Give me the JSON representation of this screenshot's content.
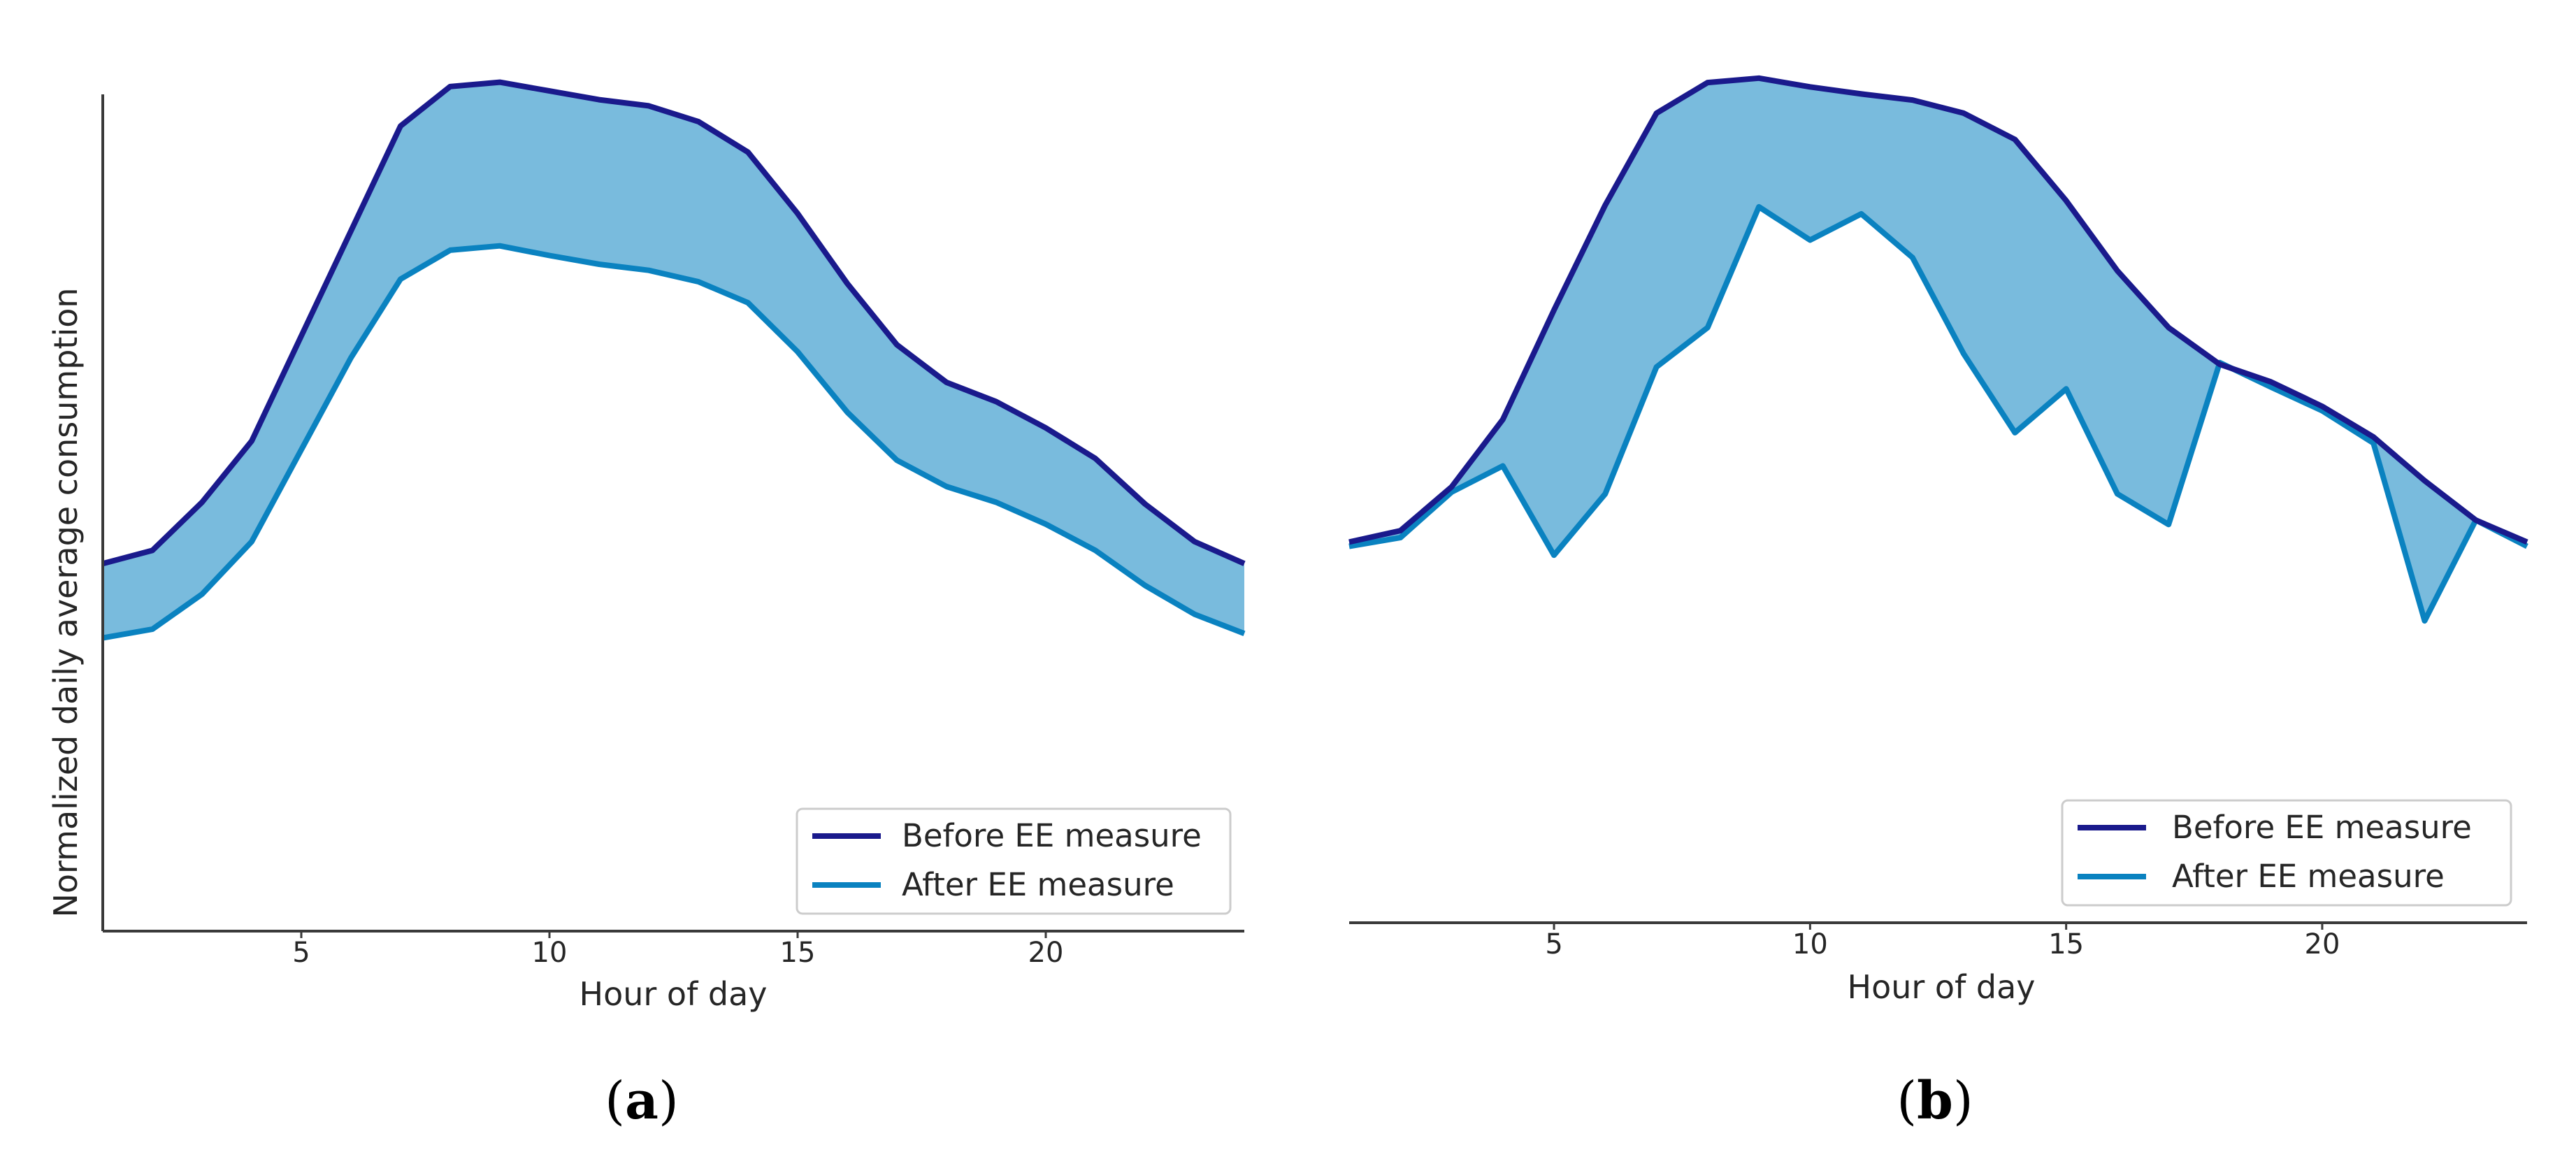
{
  "figure": {
    "caption_a": {
      "open": "(",
      "letter": "a",
      "close": ")"
    },
    "caption_b": {
      "open": "(",
      "letter": "b",
      "close": ")"
    },
    "colors": {
      "before": "#1a1a8c",
      "after": "#0a82c0",
      "fill": "#79bbdd",
      "axis": "#3a3a3a"
    }
  },
  "chart_data": [
    {
      "id": "a",
      "type": "area",
      "title": "",
      "xlabel": "Hour of day",
      "ylabel": "Normalized daily average consumption",
      "xlim": [
        1,
        24
      ],
      "ylim": [
        0,
        1
      ],
      "xticks": [
        5,
        10,
        15,
        20
      ],
      "legend": {
        "placement": "bottom-right",
        "entries": [
          "Before EE measure",
          "After EE measure"
        ]
      },
      "x": [
        1,
        2,
        3,
        4,
        5,
        6,
        7,
        8,
        9,
        10,
        11,
        12,
        13,
        14,
        15,
        16,
        17,
        18,
        19,
        20,
        21,
        22,
        23,
        24
      ],
      "series": [
        {
          "name": "Before EE measure",
          "values": [
            0.42,
            0.435,
            0.49,
            0.56,
            0.68,
            0.8,
            0.92,
            0.965,
            0.97,
            0.96,
            0.95,
            0.943,
            0.925,
            0.89,
            0.82,
            0.74,
            0.67,
            0.627,
            0.605,
            0.575,
            0.54,
            0.488,
            0.445,
            0.42
          ]
        },
        {
          "name": "After EE measure",
          "values": [
            0.335,
            0.345,
            0.385,
            0.445,
            0.55,
            0.655,
            0.745,
            0.778,
            0.783,
            0.772,
            0.762,
            0.755,
            0.742,
            0.718,
            0.662,
            0.593,
            0.538,
            0.508,
            0.49,
            0.465,
            0.435,
            0.395,
            0.362,
            0.34
          ]
        }
      ]
    },
    {
      "id": "b",
      "type": "area",
      "title": "",
      "xlabel": "Hour of day",
      "ylabel": "",
      "xlim": [
        1,
        24
      ],
      "ylim": [
        0,
        1
      ],
      "xticks": [
        5,
        10,
        15,
        20
      ],
      "legend": {
        "placement": "bottom-right",
        "entries": [
          "Before EE measure",
          "After EE measure"
        ]
      },
      "x": [
        1,
        2,
        3,
        4,
        5,
        6,
        7,
        8,
        9,
        10,
        11,
        12,
        13,
        14,
        15,
        16,
        17,
        18,
        19,
        20,
        21,
        22,
        23,
        24
      ],
      "series": [
        {
          "name": "Before EE measure",
          "values": [
            0.435,
            0.448,
            0.498,
            0.575,
            0.7,
            0.82,
            0.925,
            0.96,
            0.965,
            0.955,
            0.947,
            0.94,
            0.925,
            0.895,
            0.825,
            0.745,
            0.68,
            0.638,
            0.618,
            0.59,
            0.555,
            0.505,
            0.46,
            0.435
          ]
        },
        {
          "name": "After EE measure",
          "values": [
            0.43,
            0.44,
            0.492,
            0.522,
            0.42,
            0.49,
            0.635,
            0.68,
            0.818,
            0.78,
            0.81,
            0.76,
            0.65,
            0.56,
            0.61,
            0.49,
            0.455,
            0.64,
            0.612,
            0.585,
            0.548,
            0.345,
            0.46,
            0.43
          ]
        }
      ]
    }
  ]
}
